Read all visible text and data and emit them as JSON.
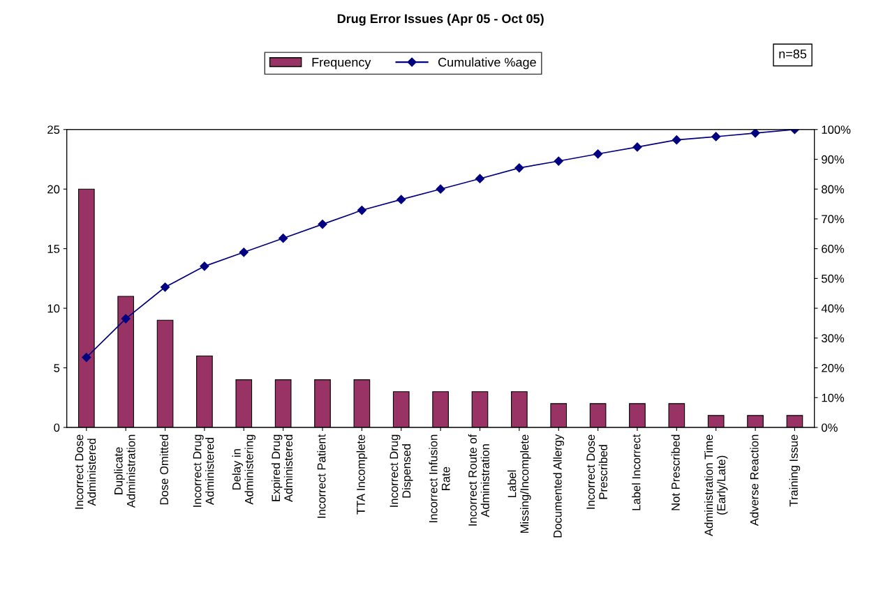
{
  "chart_data": {
    "type": "bar",
    "title": "Drug Error Issues (Apr 05 - Oct 05)",
    "categories": [
      "Incorrect Dose\nAdministered",
      "Duplicate\nAdministration",
      "Dose Omitted",
      "Incorrect Drug\nAdministered",
      "Delay in\nAdministering",
      "Expired Drug\nAdministered",
      "Incorrect Patient",
      "TTA Incomplete",
      "Incorrect Drug\nDispensed",
      "Incorrect Infusion\nRate",
      "Incorrect Route of\nAdministration",
      "Label\nMissing/Incomplete",
      "Documented Allergy",
      "Incorrect Dose\nPrescribed",
      "Label Incorrect",
      "Not Prescribed",
      "Administration Time\n(Early/Late)",
      "Adverse Reaction",
      "Training Issue"
    ],
    "series": [
      {
        "name": "Frequency",
        "color": "#993366",
        "values": [
          20,
          11,
          9,
          6,
          4,
          4,
          4,
          4,
          3,
          3,
          3,
          3,
          2,
          2,
          2,
          2,
          1,
          1,
          1
        ]
      },
      {
        "name": "Cumulative %age",
        "type": "line",
        "axis": "y2",
        "color": "#000080",
        "marker": "diamond",
        "values": [
          23.5,
          36.5,
          47.1,
          54.1,
          58.8,
          63.5,
          68.2,
          72.9,
          76.5,
          80.0,
          83.5,
          87.1,
          89.4,
          91.8,
          94.1,
          96.5,
          97.6,
          98.8,
          100
        ]
      }
    ],
    "ylim": [
      0,
      25
    ],
    "yticks": [
      0,
      5,
      10,
      15,
      20,
      25
    ],
    "y2lim": [
      0,
      100
    ],
    "y2ticks": [
      {
        "value": 0,
        "label": "0%"
      },
      {
        "value": 10,
        "label": "10%"
      },
      {
        "value": 20,
        "label": "20%"
      },
      {
        "value": 30,
        "label": "30%"
      },
      {
        "value": 40,
        "label": "40%"
      },
      {
        "value": 50,
        "label": "50%"
      },
      {
        "value": 60,
        "label": "60%"
      },
      {
        "value": 70,
        "label": "70%"
      },
      {
        "value": 80,
        "label": "80%"
      },
      {
        "value": 90,
        "label": "90%"
      },
      {
        "value": 100,
        "label": "100%"
      }
    ],
    "annotations": [
      "n=85"
    ],
    "legend": "top",
    "grid": false
  }
}
